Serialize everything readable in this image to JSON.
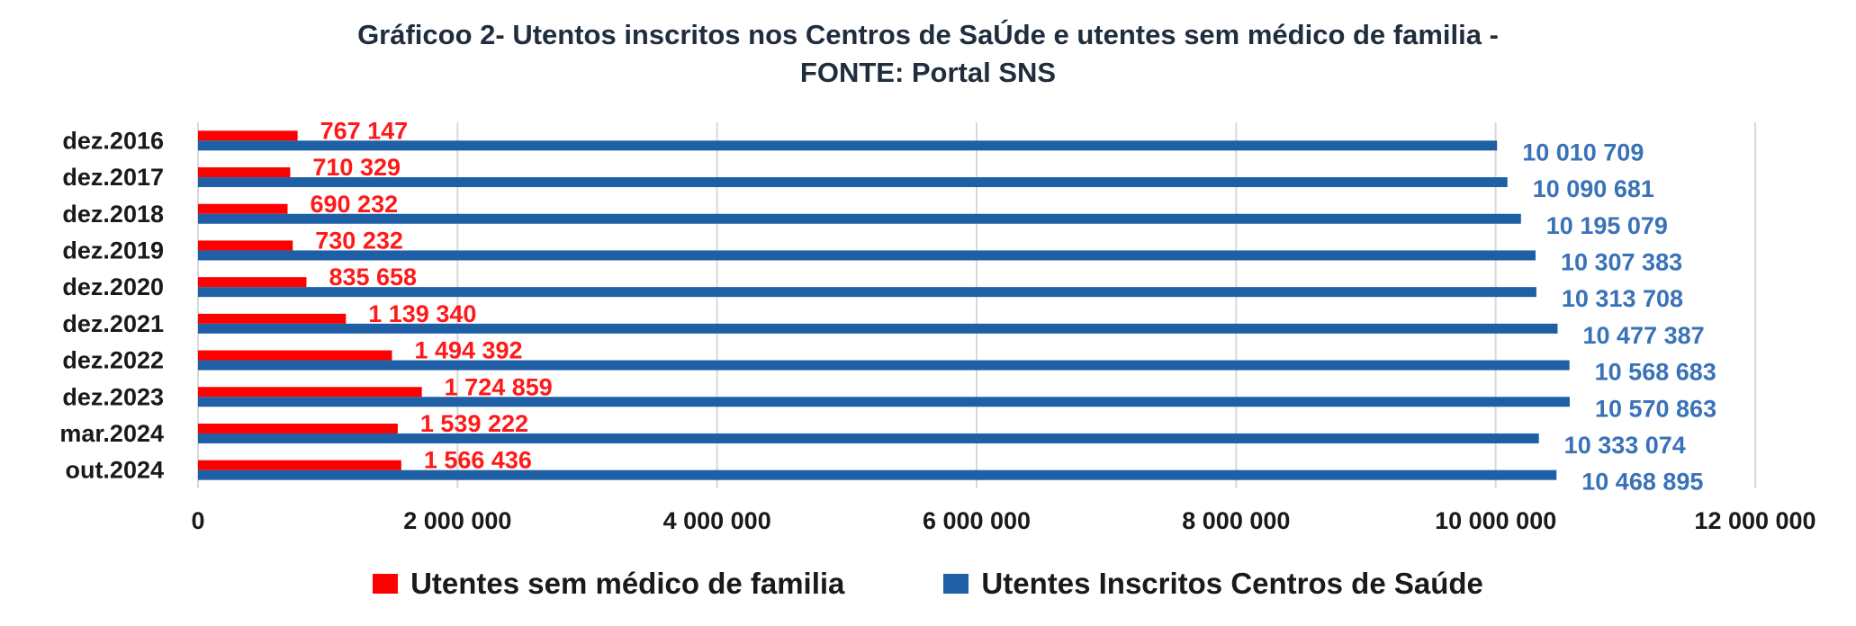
{
  "title_line1": "Gráficoo  2- Utentos inscritos  nos Centros de SaÚde e utentes sem médico  de familia  -",
  "title_line2": "FONTE: Portal SNS",
  "chart_data": {
    "type": "bar",
    "orientation": "horizontal",
    "title": "Gráficoo  2- Utentos inscritos  nos Centros de SaÚde e utentes sem médico  de familia  - FONTE: Portal SNS",
    "categories": [
      "dez.2016",
      "dez.2017",
      "dez.2018",
      "dez.2019",
      "dez.2020",
      "dez.2021",
      "dez.2022",
      "dez.2023",
      "mar.2024",
      "out.2024"
    ],
    "series": [
      {
        "name": "Utentes sem médico de familia",
        "color": "#ff0000",
        "values": [
          767147,
          710329,
          690232,
          730232,
          835658,
          1139340,
          1494392,
          1724859,
          1539222,
          1566436
        ],
        "labels": [
          "767 147",
          "710 329",
          "690 232",
          "730 232",
          "835 658",
          "1 139 340",
          "1 494 392",
          "1 724 859",
          "1 539 222",
          "1 566 436"
        ]
      },
      {
        "name": "Utentes Inscritos Centros de Saúde",
        "color": "#1f5fa6",
        "values": [
          10010709,
          10090681,
          10195079,
          10307383,
          10313708,
          10477387,
          10568683,
          10570863,
          10333074,
          10468895
        ],
        "labels": [
          "10 010 709",
          "10 090 681",
          "10 195 079",
          "10 307 383",
          "10 313 708",
          "10 477 387",
          "10 568 683",
          "10 570 863",
          "10 333 074",
          "10 468 895"
        ]
      }
    ],
    "xlim": [
      0,
      12000000
    ],
    "x_ticks": [
      0,
      2000000,
      4000000,
      6000000,
      8000000,
      10000000,
      12000000
    ],
    "x_tick_labels": [
      "0",
      "2 000 000",
      "4 000 000",
      "6 000 000",
      "8 000 000",
      "10 000 000",
      "12 000 000"
    ],
    "grid": true,
    "legend_position": "bottom",
    "label_colors": {
      "red_label": "#ff1a1a",
      "blue_label": "#3a72b8"
    },
    "grid_color": "#d9d9d9"
  }
}
